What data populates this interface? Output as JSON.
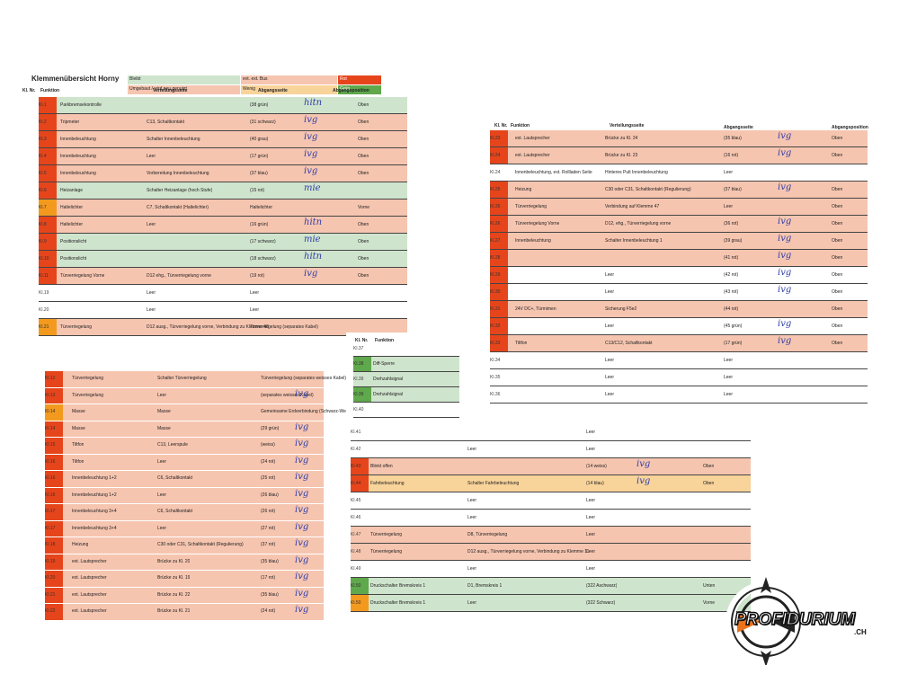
{
  "sheet1": {
    "title": "Klemmenübersicht Horny",
    "legend": [
      {
        "text": "Bleibt",
        "color": "#cfe4cd"
      },
      {
        "text": "evt. ext. Bus",
        "color": "#f6c5b0"
      },
      {
        "text": "Rot",
        "color": "#e6451c"
      },
      {
        "text": "Umgebaut / wird neu genutzt",
        "color": "#f6c5b0"
      },
      {
        "text": "Wenig",
        "color": "#f8d39a"
      },
      {
        "text": "Grün",
        "color": "#5fa84b"
      }
    ],
    "headers": [
      "Kl. Nr.",
      "Funktion",
      "Verteilungsseite",
      "Abgangsseite",
      "Abgangsposition"
    ],
    "rows": [
      {
        "kl": "Kl.1",
        "fn": "Parkbremsekontrolle",
        "vs": "",
        "as": "(38 grün)",
        "pos": "Oben",
        "bg": "green",
        "strip": "red",
        "sig": "hitn"
      },
      {
        "kl": "Kl.2",
        "fn": "Tripmeter",
        "vs": "C13, Schaltkontakt",
        "as": "(31 schwarz)",
        "pos": "Oben",
        "bg": "salmon",
        "strip": "red",
        "sig": "ivg"
      },
      {
        "kl": "Kl.3",
        "fn": "Innenbeleuchtung",
        "vs": "Schalter Innenbeleuchtung",
        "as": "(40 grau)",
        "pos": "Oben",
        "bg": "salmon",
        "strip": "red",
        "sig": "ivg"
      },
      {
        "kl": "Kl.4",
        "fn": "Innenbeleuchtung",
        "vs": "Leer",
        "as": "(17 grün)",
        "pos": "Oben",
        "bg": "salmon",
        "strip": "red",
        "sig": "ivg"
      },
      {
        "kl": "Kl.5",
        "fn": "Innenbeleuchtung",
        "vs": "Vorbereitung Innenbeleuchtung",
        "as": "(37 blau)",
        "pos": "Oben",
        "bg": "salmon",
        "strip": "red",
        "sig": "ivg"
      },
      {
        "kl": "Kl.6",
        "fn": "Heizanlage",
        "vs": "Schalter Heizanlage (hoch Stufe)",
        "as": "(15 rot)",
        "pos": "",
        "bg": "green",
        "strip": "red",
        "sig": "mie"
      },
      {
        "kl": "Kl.7",
        "fn": "Haltelichter",
        "vs": "C7, Schaltkontakt (Haltelichter)",
        "as": "Haltelichter",
        "pos": "Vorne",
        "bg": "salmon",
        "strip": "orange",
        "sig": ""
      },
      {
        "kl": "Kl.8",
        "fn": "Haltelichter",
        "vs": "Leer",
        "as": "(16 grün)",
        "pos": "Oben",
        "bg": "salmon",
        "strip": "red",
        "sig": "hitn"
      },
      {
        "kl": "Kl.9",
        "fn": "Positionslicht",
        "vs": "",
        "as": "(17 schwarz)",
        "pos": "Oben",
        "bg": "green",
        "strip": "red",
        "sig": "mie"
      },
      {
        "kl": "Kl.10",
        "fn": "Positionslicht",
        "vs": "",
        "as": "(18 schwarz)",
        "pos": "Oben",
        "bg": "green",
        "strip": "red",
        "sig": "hitn"
      },
      {
        "kl": "Kl.11",
        "fn": "Türverriegelung Vorne",
        "vs": "D12 ehg., Türverriegelung vorne",
        "as": "(19 rot)",
        "pos": "Oben",
        "bg": "salmon",
        "strip": "red",
        "sig": "ivg"
      },
      {
        "kl": "Kl.19",
        "fn": "",
        "vs": "Leer",
        "as": "Leer",
        "pos": "",
        "bg": "none",
        "strip": "none",
        "sig": ""
      },
      {
        "kl": "Kl.20",
        "fn": "",
        "vs": "Leer",
        "as": "Leer",
        "pos": "",
        "bg": "none",
        "strip": "none",
        "sig": ""
      },
      {
        "kl": "Kl.21",
        "fn": "Türverriegelung",
        "vs": "D12 ausg., Türverriegelung vorne, Verbindung zu Klemme 48",
        "as": "Türverriegelung (separates Kabel)",
        "pos": "",
        "bg": "salmon",
        "strip": "orange",
        "sig": ""
      }
    ]
  },
  "sheet2": {
    "headers": [
      "Kl. Nr.",
      "Funktion",
      "Verteilungsseite",
      "Abgangsseite",
      "Abgangsposition"
    ],
    "rows": [
      {
        "kl": "Kl.23",
        "fn": "ext. Lautsprecher",
        "vs": "Brücke zu Kl. 24",
        "as": "(35 blau)",
        "pos": "Oben",
        "bg": "salmon",
        "strip": "red",
        "sig": "ivg"
      },
      {
        "kl": "Kl.24",
        "fn": "ext. Lautsprecher",
        "vs": "Brücke zu Kl. 23",
        "as": "(16 rot)",
        "pos": "Oben",
        "bg": "salmon",
        "strip": "red",
        "sig": "ivg"
      },
      {
        "kl": "Kl.24",
        "fn": "Innenbeleuchtung, ext. Rollladen Seite",
        "vs": "Hinteres Pult Innenbeleuchtung",
        "as": "Leer",
        "pos": "",
        "bg": "none",
        "strip": "none",
        "sig": ""
      },
      {
        "kl": "Kl.25",
        "fn": "Heizung",
        "vs": "C30 oder C31, Schaltkontakt (Regulierung)",
        "as": "(37 blau)",
        "pos": "Oben",
        "bg": "salmon",
        "strip": "red",
        "sig": "ivg"
      },
      {
        "kl": "Kl.26",
        "fn": "Türverriegelung",
        "vs": "Verbindung auf Klemme 47",
        "as": "Leer",
        "pos": "Oben",
        "bg": "salmon",
        "strip": "red",
        "sig": ""
      },
      {
        "kl": "Kl.26",
        "fn": "Türverriegelung Vorne",
        "vs": "D12, ehg., Türverriegelung vorne",
        "as": "(36 rot)",
        "pos": "Oben",
        "bg": "salmon",
        "strip": "red",
        "sig": "ivg"
      },
      {
        "kl": "Kl.27",
        "fn": "Innenbeleuchtung",
        "vs": "Schalter Innenbeleuchtung 1",
        "as": "(39 grau)",
        "pos": "Oben",
        "bg": "salmon",
        "strip": "red",
        "sig": "ivg"
      },
      {
        "kl": "Kl.28",
        "fn": "",
        "vs": "",
        "as": "(41 rot)",
        "pos": "Oben",
        "bg": "salmon",
        "strip": "red",
        "sig": "ivg"
      },
      {
        "kl": "Kl.29",
        "fn": "",
        "vs": "Leer",
        "as": "(42 rot)",
        "pos": "Oben",
        "bg": "none",
        "strip": "red",
        "sig": "ivg"
      },
      {
        "kl": "Kl.30",
        "fn": "",
        "vs": "Leer",
        "as": "(43 rot)",
        "pos": "Oben",
        "bg": "none",
        "strip": "red",
        "sig": "ivg"
      },
      {
        "kl": "Kl.31",
        "fn": "24V DC+, Türmimen",
        "vs": "Sicherung F5e2",
        "as": "(44 rot)",
        "pos": "Oben",
        "bg": "salmon",
        "strip": "red",
        "sig": ""
      },
      {
        "kl": "Kl.32",
        "fn": "",
        "vs": "Leer",
        "as": "(45 grün)",
        "pos": "Oben",
        "bg": "none",
        "strip": "red",
        "sig": "ivg"
      },
      {
        "kl": "Kl.33",
        "fn": "Tiltfon",
        "vs": "C13/C12, Schaltkontakt",
        "as": "(17 grün)",
        "pos": "Oben",
        "bg": "salmon",
        "strip": "red",
        "sig": "ivg"
      },
      {
        "kl": "Kl.34",
        "fn": "",
        "vs": "Leer",
        "as": "Leer",
        "pos": "",
        "bg": "none",
        "strip": "none",
        "sig": ""
      },
      {
        "kl": "Kl.35",
        "fn": "",
        "vs": "Leer",
        "as": "Leer",
        "pos": "",
        "bg": "none",
        "strip": "none",
        "sig": ""
      },
      {
        "kl": "Kl.36",
        "fn": "",
        "vs": "Leer",
        "as": "Leer",
        "pos": "",
        "bg": "none",
        "strip": "none",
        "sig": ""
      }
    ]
  },
  "sheet3": {
    "rows": [
      {
        "kl": "Kl.12",
        "fn": "Türverriegelung",
        "vs": "Schalter Türverriegelung",
        "as": "Türverriegelung (separates weisses Kabel)",
        "pos": "",
        "bg": "salmon",
        "strip": "red",
        "sig": ""
      },
      {
        "kl": "Kl.13",
        "fn": "Türverriegelung",
        "vs": "Leer",
        "as": "(separates weisses Kabel)",
        "pos": "",
        "bg": "salmon",
        "strip": "red",
        "sig": "ivg"
      },
      {
        "kl": "Kl.14",
        "fn": "Masse",
        "vs": "Masse",
        "as": "Gemeinsame Erdverbindung (Schwarz-Weiss, separates)",
        "pos": "",
        "bg": "salmon",
        "strip": "orange",
        "sig": ""
      },
      {
        "kl": "Kl.14",
        "fn": "Masse",
        "vs": "Masse",
        "as": "(29 grün)",
        "pos": "",
        "bg": "salmon",
        "strip": "red",
        "sig": "ivg"
      },
      {
        "kl": "Kl.15",
        "fn": "Tiltfon",
        "vs": "C13, Leerspule",
        "as": "(weiss)",
        "pos": "",
        "bg": "salmon",
        "strip": "red",
        "sig": "ivg"
      },
      {
        "kl": "Kl.16",
        "fn": "Tiltfon",
        "vs": "Leer",
        "as": "(24 rot)",
        "pos": "",
        "bg": "salmon",
        "strip": "red",
        "sig": "ivg"
      },
      {
        "kl": "Kl.16",
        "fn": "Innenbeleuchtung 1+2",
        "vs": "C6, Schaltkontakt",
        "as": "(25 rot)",
        "pos": "",
        "bg": "salmon",
        "strip": "red",
        "sig": "ivg"
      },
      {
        "kl": "Kl.16",
        "fn": "Innenbeleuchtung 1+2",
        "vs": "Leer",
        "as": "(26 blau)",
        "pos": "",
        "bg": "salmon",
        "strip": "red",
        "sig": "ivg"
      },
      {
        "kl": "Kl.17",
        "fn": "Innenbeleuchtung 3+4",
        "vs": "C6, Schaltkontakt",
        "as": "(26 rot)",
        "pos": "",
        "bg": "salmon",
        "strip": "red",
        "sig": "ivg"
      },
      {
        "kl": "Kl.17",
        "fn": "Innenbeleuchtung 3+4",
        "vs": "Leer",
        "as": "(27 rot)",
        "pos": "",
        "bg": "salmon",
        "strip": "red",
        "sig": "ivg"
      },
      {
        "kl": "Kl.18",
        "fn": "Heizung",
        "vs": "C30 oder C31, Schaltkontakt (Regulierung)",
        "as": "(37 rot)",
        "pos": "",
        "bg": "salmon",
        "strip": "red",
        "sig": "ivg"
      },
      {
        "kl": "Kl.19",
        "fn": "ext. Lautsprecher",
        "vs": "Brücke zu Kl. 20",
        "as": "(35 blau)",
        "pos": "",
        "bg": "salmon",
        "strip": "red",
        "sig": "ivg"
      },
      {
        "kl": "Kl.20",
        "fn": "ext. Lautsprecher",
        "vs": "Brücke zu Kl. 19",
        "as": "(17 rot)",
        "pos": "",
        "bg": "salmon",
        "strip": "red",
        "sig": "ivg"
      },
      {
        "kl": "Kl.21",
        "fn": "ext. Lautsprecher",
        "vs": "Brücke zu Kl. 22",
        "as": "(35 blau)",
        "pos": "",
        "bg": "salmon",
        "strip": "red",
        "sig": "ivg"
      },
      {
        "kl": "Kl.22",
        "fn": "ext. Lautsprecher",
        "vs": "Brücke zu Kl. 21",
        "as": "(24 rot)",
        "pos": "",
        "bg": "salmon",
        "strip": "red",
        "sig": "ivg"
      }
    ]
  },
  "sheet4": {
    "headers": [
      "Kl. Nr.",
      "Funktion"
    ],
    "rows": [
      {
        "kl": "Kl.37",
        "fn": "",
        "bg": "none",
        "strip": "none"
      },
      {
        "kl": "Kl.38",
        "fn": "Diff-Sperre",
        "bg": "green",
        "strip": "green"
      },
      {
        "kl": "Kl.39",
        "fn": "Drehzahlsignal",
        "bg": "green",
        "strip": "none"
      },
      {
        "kl": "Kl.39",
        "fn": "Drehzahlsignal",
        "bg": "green",
        "strip": "green"
      },
      {
        "kl": "Kl.40",
        "fn": "",
        "bg": "none",
        "strip": "none"
      }
    ]
  },
  "sheet5": {
    "rows": [
      {
        "kl": "Kl.41",
        "fn": "",
        "vs": "",
        "as": "Leer",
        "pos": "",
        "bg": "none",
        "strip": "none",
        "sig": ""
      },
      {
        "kl": "Kl.42",
        "fn": "",
        "vs": "Leer",
        "as": "Leer",
        "pos": "",
        "bg": "none",
        "strip": "none",
        "sig": ""
      },
      {
        "kl": "Kl.43",
        "fn": "Blinkt offen",
        "vs": "",
        "as": "(14 weiss)",
        "pos": "Oben",
        "bg": "salmon",
        "strip": "red",
        "sig": "ivg"
      },
      {
        "kl": "Kl.44",
        "fn": "Fahrbeleuchtung",
        "vs": "Schalter Fahrbeleuchtung",
        "as": "(14 blau)",
        "pos": "Oben",
        "bg": "orange",
        "strip": "red",
        "sig": "ivg"
      },
      {
        "kl": "Kl.45",
        "fn": "",
        "vs": "Leer",
        "as": "Leer",
        "pos": "",
        "bg": "none",
        "strip": "none",
        "sig": ""
      },
      {
        "kl": "Kl.46",
        "fn": "",
        "vs": "Leer",
        "as": "Leer",
        "pos": "",
        "bg": "none",
        "strip": "none",
        "sig": ""
      },
      {
        "kl": "Kl.47",
        "fn": "Türverriegelung",
        "vs": "D8, Türverriegelung",
        "as": "Leer",
        "pos": "",
        "bg": "salmon",
        "strip": "none",
        "sig": ""
      },
      {
        "kl": "Kl.48",
        "fn": "Türverriegelung",
        "vs": "D12 ausg., Türverriegelung vorne, Verbindung zu Klemme 11",
        "as": "Leer",
        "pos": "",
        "bg": "salmon",
        "strip": "none",
        "sig": ""
      },
      {
        "kl": "Kl.49",
        "fn": "",
        "vs": "Leer",
        "as": "Leer",
        "pos": "",
        "bg": "none",
        "strip": "none",
        "sig": ""
      },
      {
        "kl": "Kl.50",
        "fn": "Druckschalter Bremskreis 1",
        "vs": "D1, Bremskreis 1",
        "as": "(322 Aschwarz)",
        "pos": "Unten",
        "bg": "green",
        "strip": "green",
        "sig": ""
      },
      {
        "kl": "Kl.50",
        "fn": "Druckschalter Bremskreis 1",
        "vs": "Leer",
        "as": "(322 Schwarz)",
        "pos": "Vorne",
        "bg": "green",
        "strip": "orange",
        "sig": ""
      }
    ]
  },
  "logo": {
    "name": "PROFIDURIUM",
    "suffix": ".CH",
    "accent": "#e8731c"
  },
  "colors": {
    "salmon": "#f6c5b0",
    "green": "#cfe4cd",
    "orange": "#f8d39a",
    "red": "#e6451c",
    "strip_orange": "#f39a1e",
    "strip_green": "#5fa84b"
  }
}
